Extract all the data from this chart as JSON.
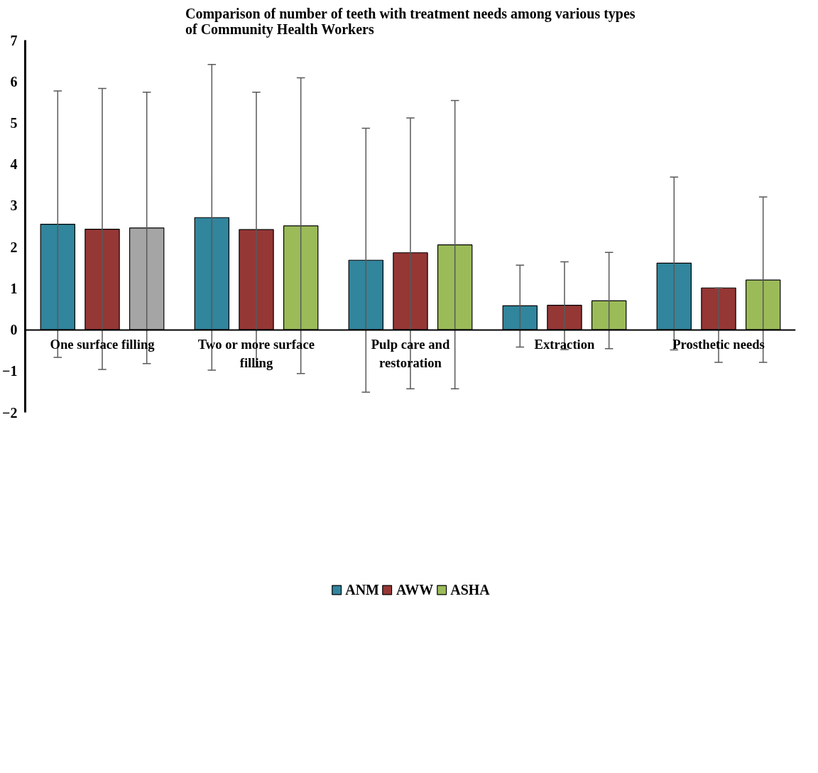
{
  "chart_data": {
    "type": "bar",
    "title": "Comparison of number of teeth with treatment needs among various types of Community Health Workers",
    "categories": [
      "One surface filling",
      "Two or more surface filling",
      "Pulp care and restoration",
      "Extraction",
      "Prosthetic needs"
    ],
    "series": [
      {
        "name": "ANM",
        "color": "#31859c",
        "values": [
          2.55,
          2.71,
          1.68,
          0.58,
          1.61
        ],
        "errors": [
          [
            -0.67,
            5.77
          ],
          [
            -0.98,
            6.41
          ],
          [
            -1.51,
            4.87
          ],
          [
            -0.42,
            1.56
          ],
          [
            -0.49,
            3.69
          ]
        ]
      },
      {
        "name": "AWW",
        "color": "#953735",
        "values": [
          2.43,
          2.42,
          1.86,
          0.59,
          1.01
        ],
        "errors": [
          [
            -0.96,
            5.83
          ],
          [
            -0.9,
            5.74
          ],
          [
            -1.43,
            5.12
          ],
          [
            -0.48,
            1.64
          ],
          [
            -0.79,
            1.01
          ]
        ]
      },
      {
        "name": "ASHA",
        "color": "#9bbb59",
        "colors": [
          "#a5a5a5",
          "#9bbb59",
          "#9bbb59",
          "#9bbb59",
          "#9bbb59"
        ],
        "values": [
          2.46,
          2.51,
          2.05,
          0.7,
          1.2
        ],
        "errors": [
          [
            -0.82,
            5.74
          ],
          [
            -1.06,
            6.09
          ],
          [
            -1.43,
            5.54
          ],
          [
            -0.46,
            1.87
          ],
          [
            -0.79,
            3.21
          ]
        ]
      }
    ],
    "ylim": [
      -2,
      7
    ],
    "yticks": [
      -2,
      -1,
      0,
      1,
      2,
      3,
      4,
      5,
      6,
      7
    ],
    "legend": "bottom",
    "grid": false
  }
}
